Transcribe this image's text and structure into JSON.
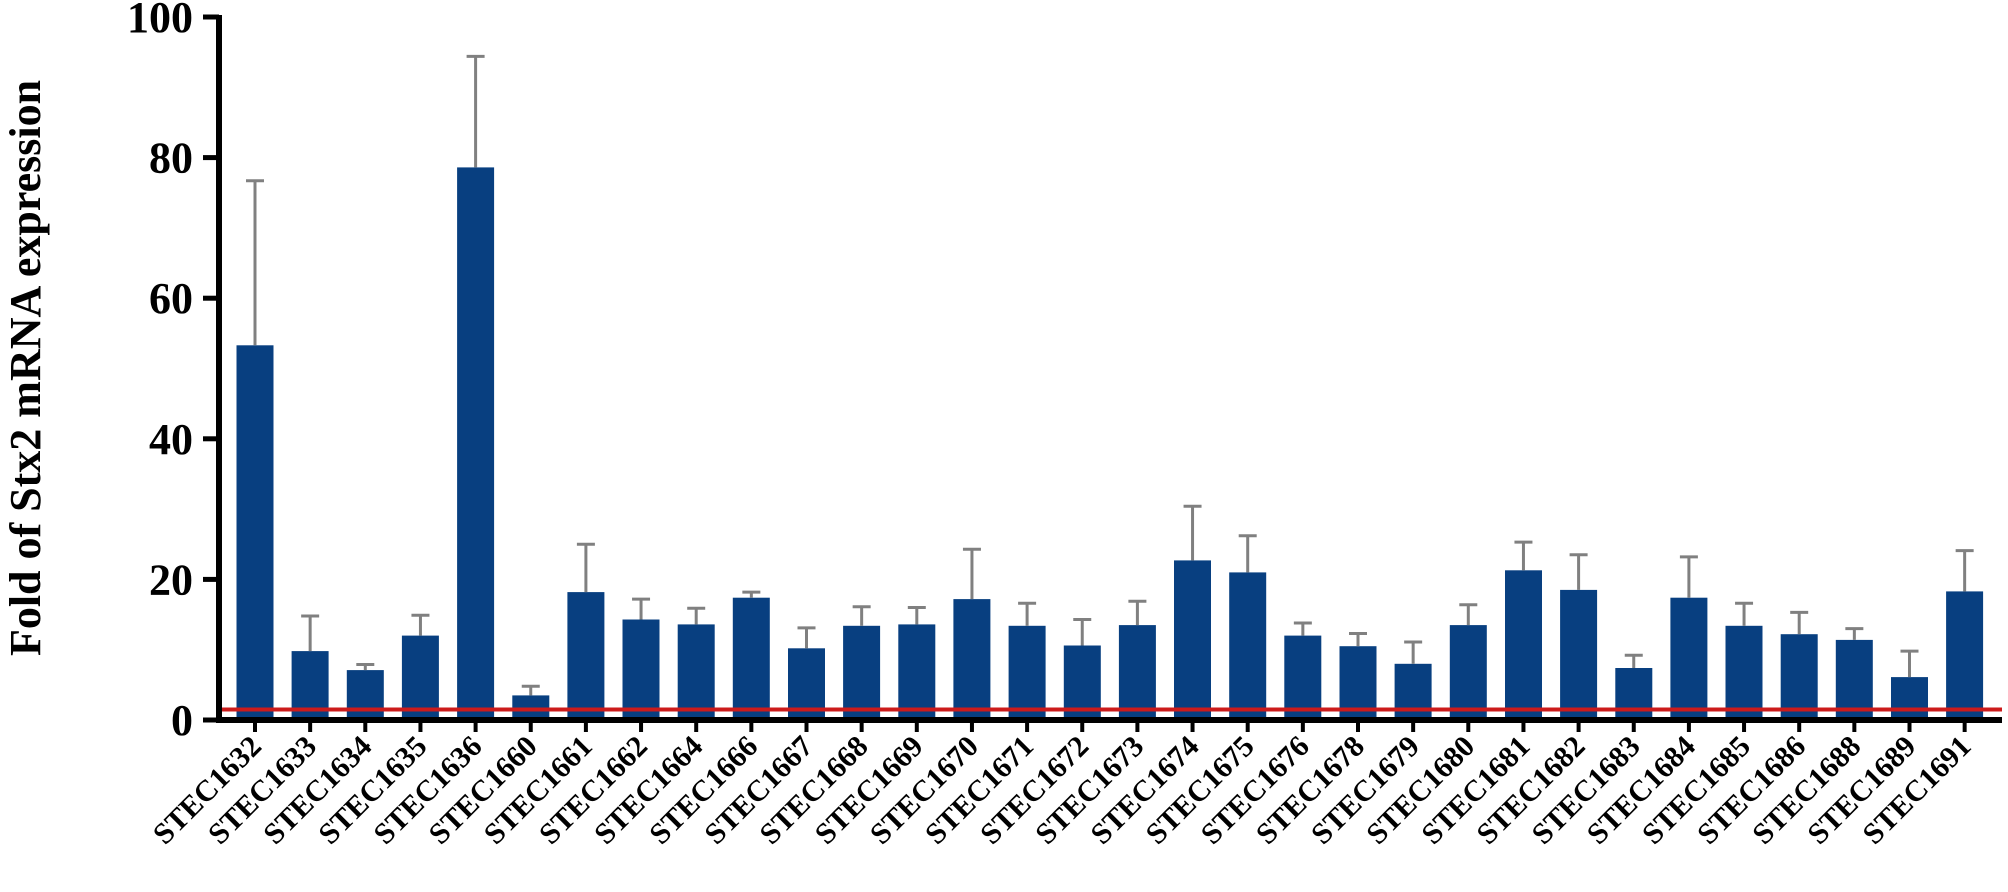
{
  "chart_data": {
    "type": "bar",
    "title": "",
    "xlabel": "",
    "ylabel": "Fold of Stx2 mRNA expression",
    "ylim": [
      0,
      100
    ],
    "yticks": [
      "0",
      "20",
      "40",
      "60",
      "80",
      "100"
    ],
    "grid": false,
    "legend": "none",
    "reference_line": {
      "y": 1.5,
      "color": "#cc1b1b"
    },
    "bar_color": "#083f80",
    "error_color": "#808080",
    "categories": [
      "STEC1632",
      "STEC1633",
      "STEC1634",
      "STEC1635",
      "STEC1636",
      "STEC1660",
      "STEC1661",
      "STEC1662",
      "STEC1664",
      "STEC1666",
      "STEC1667",
      "STEC1668",
      "STEC1669",
      "STEC1670",
      "STEC1671",
      "STEC1672",
      "STEC1673",
      "STEC1674",
      "STEC1675",
      "STEC1676",
      "STEC1678",
      "STEC1679",
      "STEC1680",
      "STEC1681",
      "STEC1682",
      "STEC1683",
      "STEC1684",
      "STEC1685",
      "STEC1686",
      "STEC1688",
      "STEC1689",
      "STEC1691"
    ],
    "values": [
      53.3,
      9.8,
      7.1,
      12.0,
      78.6,
      3.5,
      18.2,
      14.3,
      13.6,
      17.4,
      10.2,
      13.4,
      13.6,
      17.2,
      13.4,
      10.6,
      13.5,
      22.7,
      21.0,
      12.0,
      10.5,
      8.0,
      13.5,
      21.3,
      18.5,
      7.4,
      17.4,
      13.4,
      12.2,
      11.4,
      6.1,
      18.3
    ],
    "errors": [
      23.4,
      5.0,
      0.8,
      2.9,
      15.8,
      1.3,
      6.8,
      2.9,
      2.3,
      0.8,
      2.9,
      2.7,
      2.4,
      7.1,
      3.2,
      3.7,
      3.4,
      7.7,
      5.2,
      1.8,
      1.8,
      3.1,
      2.9,
      4.0,
      5.0,
      1.8,
      5.8,
      3.2,
      3.1,
      1.6,
      3.7,
      5.8
    ]
  }
}
